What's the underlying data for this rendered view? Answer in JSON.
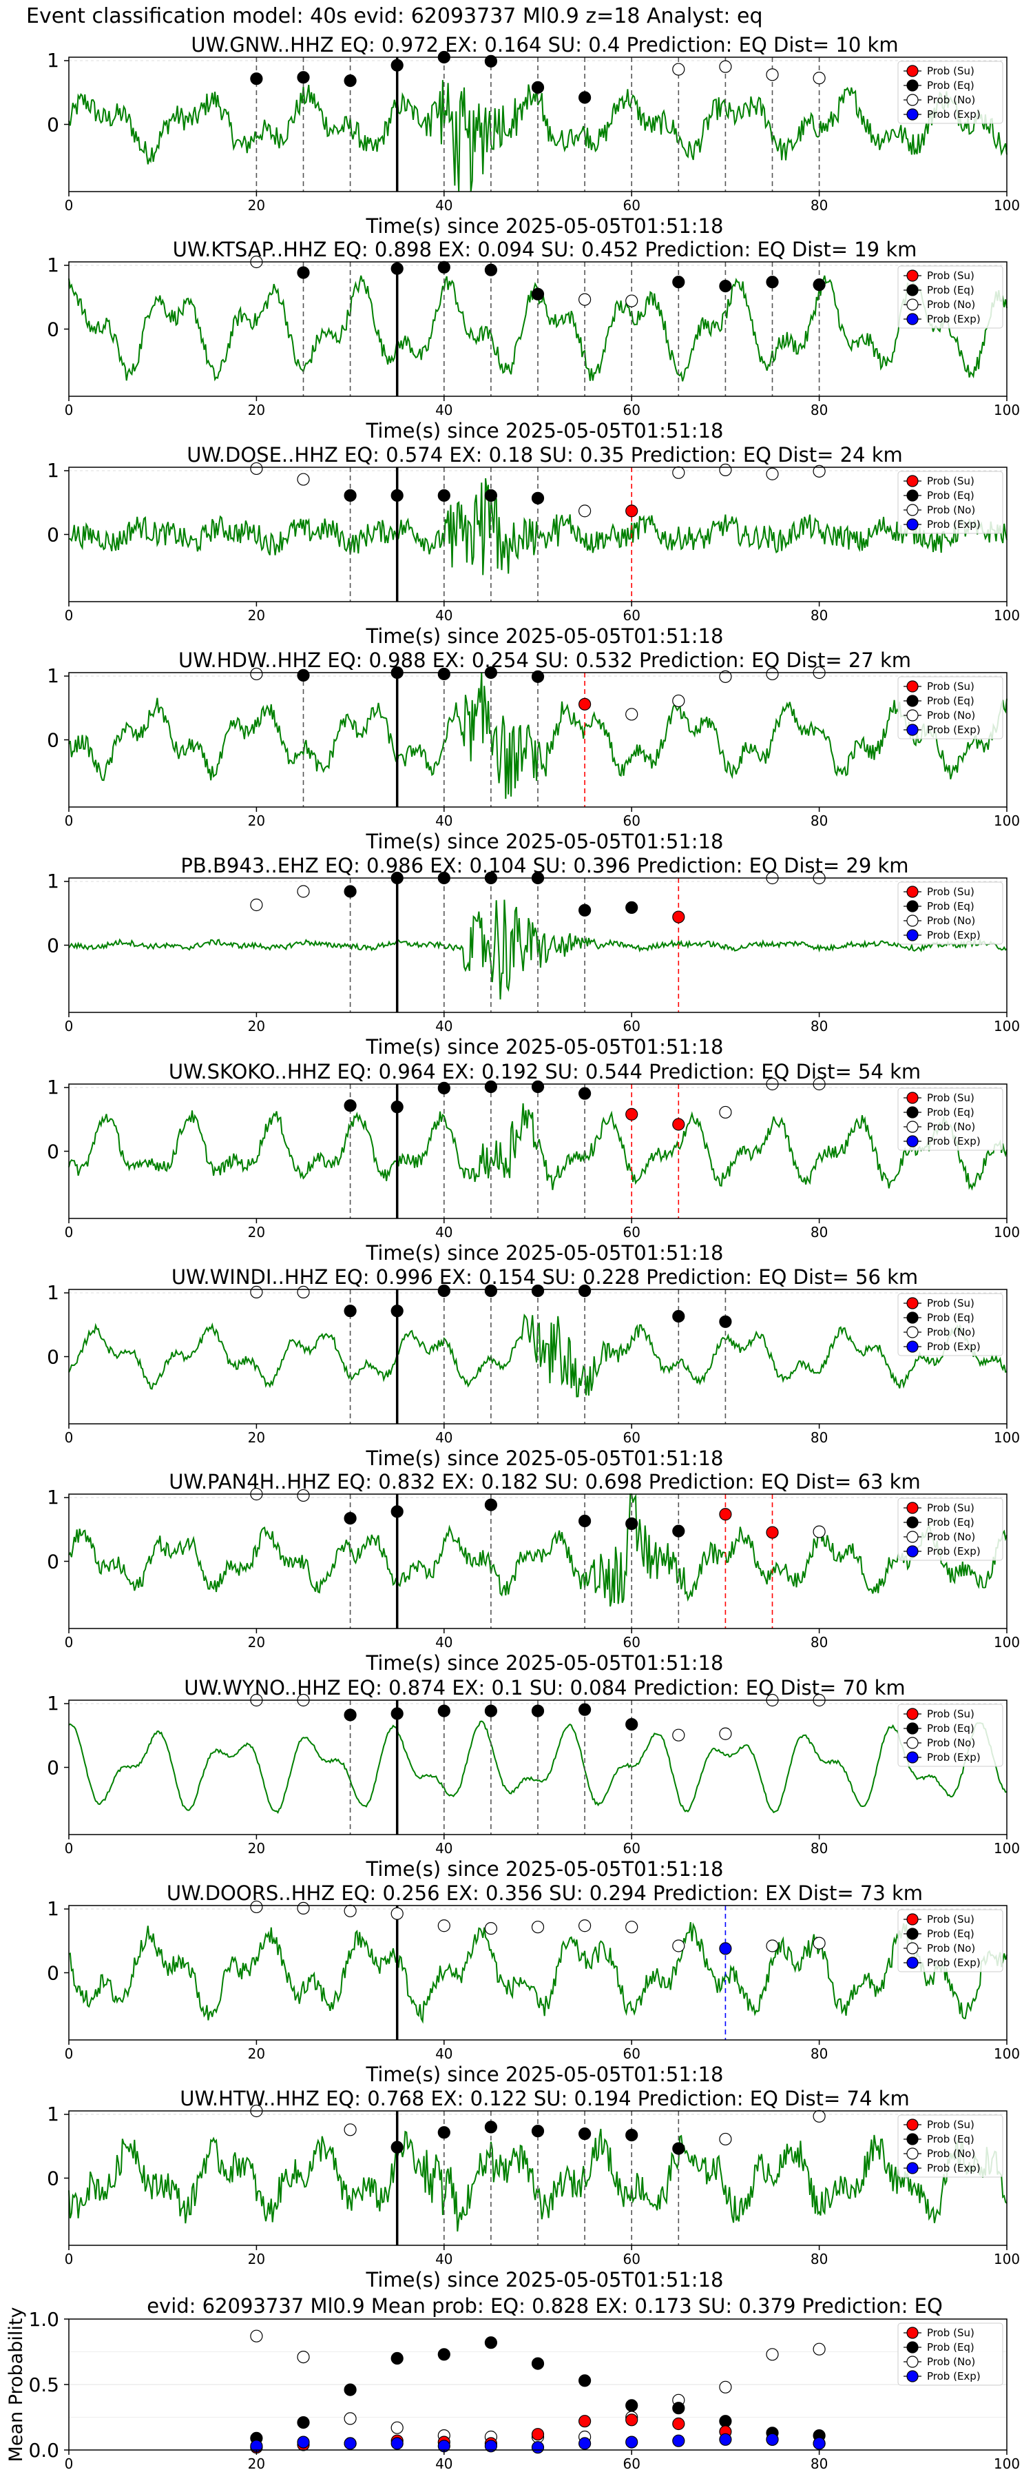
{
  "page_title": "Event classification model: 40s evid: 62093737 Ml0.9 z=18 Analyst: eq",
  "colors": {
    "waveform": "#008000",
    "su": "#ff0000",
    "eq": "#000000",
    "no": "#ffffff",
    "exp": "#0000ff",
    "pick_solid": "#000000",
    "pick_dashed": "#555555"
  },
  "legend_labels": [
    "Prob (Su)",
    "Prob (Eq)",
    "Prob (No)",
    "Prob (Exp)"
  ],
  "chart_data": [
    {
      "type": "line",
      "title": "UW.GNW..HHZ   EQ: 0.972  EX: 0.164  SU: 0.4   Prediction: EQ    Dist= 10 km",
      "xlabel": "Time(s) since 2025-05-05T01:51:18",
      "xlim": [
        0,
        100
      ],
      "ylim": [
        -1,
        1
      ],
      "xticks": [
        0,
        20,
        40,
        60,
        80,
        100
      ],
      "yticks": [
        1,
        0
      ],
      "legend_position": "top-right",
      "arrival_time": 35,
      "window_starts": [
        20,
        25,
        30,
        35,
        40,
        45,
        50,
        55,
        60,
        65,
        70,
        75,
        80
      ],
      "series": [
        {
          "name": "Prob (No)",
          "x": [
            65,
            70,
            75,
            80
          ],
          "y": [
            0.82,
            0.86,
            0.74,
            0.69
          ]
        },
        {
          "name": "Prob (Eq)",
          "x": [
            20,
            25,
            30,
            35,
            40,
            45,
            50,
            55
          ],
          "y": [
            0.68,
            0.7,
            0.65,
            0.88,
            1.0,
            0.94,
            0.55,
            0.4
          ]
        }
      ]
    },
    {
      "type": "line",
      "title": "UW.KTSAP..HHZ   EQ: 0.898  EX: 0.094  SU: 0.452   Prediction: EQ    Dist= 19 km",
      "xlabel": "Time(s) since 2025-05-05T01:51:18",
      "xlim": [
        0,
        100
      ],
      "ylim": [
        -1,
        1
      ],
      "xticks": [
        0,
        20,
        40,
        60,
        80,
        100
      ],
      "yticks": [
        1,
        0
      ],
      "legend_position": "top-right",
      "arrival_time": 35,
      "window_starts": [
        25,
        30,
        35,
        40,
        45,
        50,
        55,
        60,
        65,
        70,
        75,
        80
      ],
      "series": [
        {
          "name": "Prob (No)",
          "x": [
            20,
            55,
            60
          ],
          "y": [
            1.0,
            0.44,
            0.42
          ]
        },
        {
          "name": "Prob (Eq)",
          "x": [
            25,
            35,
            40,
            45,
            50,
            65,
            70,
            75,
            80
          ],
          "y": [
            0.84,
            0.9,
            0.92,
            0.88,
            0.52,
            0.7,
            0.64,
            0.7,
            0.66
          ]
        }
      ]
    },
    {
      "type": "line",
      "title": "UW.DOSE..HHZ   EQ: 0.574  EX: 0.18  SU: 0.35   Prediction: EQ    Dist= 24 km",
      "xlabel": "Time(s) since 2025-05-05T01:51:18",
      "xlim": [
        0,
        100
      ],
      "ylim": [
        -1,
        1
      ],
      "xticks": [
        0,
        20,
        40,
        60,
        80,
        100
      ],
      "yticks": [
        1,
        0
      ],
      "legend_position": "top-right",
      "arrival_time": 35,
      "window_starts": [
        30,
        40,
        45,
        50
      ],
      "su_lines": [
        60
      ],
      "series": [
        {
          "name": "Prob (No)",
          "x": [
            20,
            25,
            55,
            65,
            70,
            75,
            80
          ],
          "y": [
            0.98,
            0.82,
            0.35,
            0.92,
            0.96,
            0.9,
            0.94
          ]
        },
        {
          "name": "Prob (Eq)",
          "x": [
            30,
            35,
            40,
            45,
            50
          ],
          "y": [
            0.58,
            0.58,
            0.58,
            0.58,
            0.54
          ]
        },
        {
          "name": "Prob (Su)",
          "x": [
            60
          ],
          "y": [
            0.35
          ]
        }
      ]
    },
    {
      "type": "line",
      "title": "UW.HDW..HHZ   EQ: 0.988  EX: 0.254  SU: 0.532   Prediction: EQ    Dist= 27 km",
      "xlabel": "Time(s) since 2025-05-05T01:51:18",
      "xlim": [
        0,
        100
      ],
      "ylim": [
        -1,
        1
      ],
      "xticks": [
        0,
        20,
        40,
        60,
        80,
        100
      ],
      "yticks": [
        1,
        0
      ],
      "legend_position": "top-right",
      "arrival_time": 35,
      "window_starts": [
        25,
        40,
        45,
        50
      ],
      "su_lines": [
        55
      ],
      "series": [
        {
          "name": "Prob (No)",
          "x": [
            20,
            60,
            65,
            70,
            75,
            80
          ],
          "y": [
            0.98,
            0.38,
            0.58,
            0.94,
            0.98,
            1.0
          ]
        },
        {
          "name": "Prob (Eq)",
          "x": [
            25,
            35,
            40,
            45,
            50
          ],
          "y": [
            0.96,
            1.0,
            0.98,
            1.0,
            0.94
          ]
        },
        {
          "name": "Prob (Su)",
          "x": [
            55
          ],
          "y": [
            0.53
          ]
        }
      ]
    },
    {
      "type": "line",
      "title": "PB.B943..EHZ   EQ: 0.986  EX: 0.104  SU: 0.396   Prediction: EQ    Dist= 29 km",
      "xlabel": "Time(s) since 2025-05-05T01:51:18",
      "xlim": [
        0,
        100
      ],
      "ylim": [
        -1,
        1
      ],
      "xticks": [
        0,
        20,
        40,
        60,
        80,
        100
      ],
      "yticks": [
        1,
        0
      ],
      "legend_position": "top-right",
      "arrival_time": 35,
      "window_starts": [
        30,
        40,
        45,
        50,
        55
      ],
      "su_lines": [
        65
      ],
      "series": [
        {
          "name": "Prob (No)",
          "x": [
            20,
            25,
            75,
            80
          ],
          "y": [
            0.6,
            0.8,
            1.0,
            1.0
          ]
        },
        {
          "name": "Prob (Eq)",
          "x": [
            30,
            35,
            40,
            45,
            50,
            55,
            60
          ],
          "y": [
            0.8,
            1.0,
            1.0,
            1.0,
            1.0,
            0.52,
            0.56
          ]
        },
        {
          "name": "Prob (Su)",
          "x": [
            65
          ],
          "y": [
            0.42
          ]
        }
      ]
    },
    {
      "type": "line",
      "title": "UW.SKOKO..HHZ   EQ: 0.964  EX: 0.192  SU: 0.544   Prediction: EQ    Dist= 54 km",
      "xlabel": "Time(s) since 2025-05-05T01:51:18",
      "xlim": [
        0,
        100
      ],
      "ylim": [
        -1,
        1
      ],
      "xticks": [
        0,
        20,
        40,
        60,
        80,
        100
      ],
      "yticks": [
        1,
        0
      ],
      "legend_position": "top-right",
      "arrival_time": 35,
      "window_starts": [
        30,
        40,
        45,
        50,
        55
      ],
      "su_lines": [
        60,
        65
      ],
      "series": [
        {
          "name": "Prob (No)",
          "x": [
            70,
            75,
            80
          ],
          "y": [
            0.58,
            1.0,
            1.0
          ]
        },
        {
          "name": "Prob (Eq)",
          "x": [
            30,
            35,
            40,
            45,
            50,
            55
          ],
          "y": [
            0.68,
            0.66,
            0.94,
            0.96,
            0.96,
            0.86
          ]
        },
        {
          "name": "Prob (Su)",
          "x": [
            60,
            65
          ],
          "y": [
            0.55,
            0.4
          ]
        }
      ]
    },
    {
      "type": "line",
      "title": "UW.WINDI..HHZ   EQ: 0.996  EX: 0.154  SU: 0.228   Prediction: EQ    Dist= 56 km",
      "xlabel": "Time(s) since 2025-05-05T01:51:18",
      "xlim": [
        0,
        100
      ],
      "ylim": [
        -1,
        1
      ],
      "xticks": [
        0,
        20,
        40,
        60,
        80,
        100
      ],
      "yticks": [
        1,
        0
      ],
      "legend_position": "top-right",
      "arrival_time": 35,
      "window_starts": [
        30,
        40,
        45,
        50,
        55,
        65,
        70
      ],
      "series": [
        {
          "name": "Prob (No)",
          "x": [
            20,
            25
          ],
          "y": [
            0.96,
            0.96
          ]
        },
        {
          "name": "Prob (Eq)",
          "x": [
            30,
            35,
            40,
            45,
            50,
            55,
            65,
            70
          ],
          "y": [
            0.68,
            0.68,
            0.98,
            0.98,
            0.98,
            0.98,
            0.6,
            0.52
          ]
        }
      ]
    },
    {
      "type": "line",
      "title": "UW.PAN4H..HHZ   EQ: 0.832  EX: 0.182  SU: 0.698   Prediction: EQ    Dist= 63 km",
      "xlabel": "Time(s) since 2025-05-05T01:51:18",
      "xlim": [
        0,
        100
      ],
      "ylim": [
        -1,
        1
      ],
      "xticks": [
        0,
        20,
        40,
        60,
        80,
        100
      ],
      "yticks": [
        1,
        0
      ],
      "legend_position": "top-right",
      "arrival_time": 35,
      "window_starts": [
        30,
        45,
        55,
        60,
        65
      ],
      "su_lines": [
        70,
        75
      ],
      "series": [
        {
          "name": "Prob (No)",
          "x": [
            20,
            25,
            80
          ],
          "y": [
            1.0,
            0.98,
            0.44
          ]
        },
        {
          "name": "Prob (Eq)",
          "x": [
            30,
            35,
            45,
            55,
            60,
            65
          ],
          "y": [
            0.64,
            0.74,
            0.84,
            0.6,
            0.56,
            0.45
          ]
        },
        {
          "name": "Prob (Su)",
          "x": [
            70,
            75
          ],
          "y": [
            0.7,
            0.43
          ]
        }
      ]
    },
    {
      "type": "line",
      "title": "UW.WYNO..HHZ   EQ: 0.874  EX: 0.1  SU: 0.084   Prediction: EQ    Dist= 70 km",
      "xlabel": "Time(s) since 2025-05-05T01:51:18",
      "xlim": [
        0,
        100
      ],
      "ylim": [
        -1,
        1
      ],
      "xticks": [
        0,
        20,
        40,
        60,
        80,
        100
      ],
      "yticks": [
        1,
        0
      ],
      "legend_position": "top-right",
      "arrival_time": 35,
      "window_starts": [
        30,
        40,
        45,
        50,
        55,
        60
      ],
      "series": [
        {
          "name": "Prob (No)",
          "x": [
            20,
            25,
            65,
            70,
            75,
            80
          ],
          "y": [
            1.0,
            1.0,
            0.48,
            0.5,
            1.0,
            1.0
          ]
        },
        {
          "name": "Prob (Eq)",
          "x": [
            30,
            35,
            40,
            45,
            50,
            55,
            60
          ],
          "y": [
            0.78,
            0.8,
            0.84,
            0.84,
            0.84,
            0.86,
            0.64
          ]
        }
      ]
    },
    {
      "type": "line",
      "title": "UW.DOORS..HHZ   EQ: 0.256  EX: 0.356  SU: 0.294   Prediction: EX    Dist= 73 km",
      "xlabel": "Time(s) since 2025-05-05T01:51:18",
      "xlim": [
        0,
        100
      ],
      "ylim": [
        -1,
        1
      ],
      "xticks": [
        0,
        20,
        40,
        60,
        80,
        100
      ],
      "yticks": [
        1,
        0
      ],
      "legend_position": "top-right",
      "arrival_time": 35,
      "window_starts": [],
      "ex_lines": [
        70
      ],
      "series": [
        {
          "name": "Prob (No)",
          "x": [
            20,
            25,
            30,
            35,
            40,
            45,
            50,
            55,
            60,
            65,
            75,
            80
          ],
          "y": [
            0.98,
            0.96,
            0.92,
            0.88,
            0.7,
            0.66,
            0.68,
            0.7,
            0.68,
            0.4,
            0.4,
            0.44
          ]
        },
        {
          "name": "Prob (Exp)",
          "x": [
            70
          ],
          "y": [
            0.36
          ]
        }
      ]
    },
    {
      "type": "line",
      "title": "UW.HTW..HHZ   EQ: 0.768  EX: 0.122  SU: 0.194   Prediction: EQ    Dist= 74 km",
      "xlabel": "Time(s) since 2025-05-05T01:51:18",
      "xlim": [
        0,
        100
      ],
      "ylim": [
        -1,
        1
      ],
      "xticks": [
        0,
        20,
        40,
        60,
        80,
        100
      ],
      "yticks": [
        1,
        0
      ],
      "legend_position": "top-right",
      "arrival_time": 35,
      "window_starts": [
        40,
        45,
        50,
        55,
        60,
        65
      ],
      "series": [
        {
          "name": "Prob (No)",
          "x": [
            20,
            30,
            70,
            80
          ],
          "y": [
            1.0,
            0.72,
            0.58,
            0.92
          ]
        },
        {
          "name": "Prob (Eq)",
          "x": [
            35,
            40,
            45,
            50,
            55,
            60,
            65
          ],
          "y": [
            0.46,
            0.68,
            0.76,
            0.7,
            0.66,
            0.64,
            0.44
          ]
        }
      ]
    },
    {
      "type": "scatter",
      "title": "evid: 62093737  Ml0.9   Mean prob:   EQ: 0.828  EX: 0.173  SU: 0.379   Prediction: EQ",
      "ylabel": "Mean Probability",
      "xlim": [
        0,
        100
      ],
      "ylim": [
        0,
        1
      ],
      "xticks": [
        0,
        20,
        40,
        60,
        80,
        100
      ],
      "yticks": [
        1.0,
        0.5,
        0.0
      ],
      "legend_position": "top-right",
      "x": [
        20,
        25,
        30,
        35,
        40,
        45,
        50,
        55,
        60,
        65,
        70,
        75,
        80
      ],
      "series": [
        {
          "name": "Prob (No)",
          "values": [
            0.87,
            0.71,
            0.24,
            0.17,
            0.11,
            0.1,
            0.1,
            0.1,
            0.25,
            0.38,
            0.48,
            0.73,
            0.77
          ]
        },
        {
          "name": "Prob (Eq)",
          "values": [
            0.09,
            0.21,
            0.46,
            0.7,
            0.73,
            0.82,
            0.66,
            0.53,
            0.34,
            0.32,
            0.22,
            0.13,
            0.11
          ]
        },
        {
          "name": "Prob (Su)",
          "values": [
            0.02,
            0.04,
            0.05,
            0.07,
            0.06,
            0.05,
            0.12,
            0.22,
            0.23,
            0.2,
            0.14,
            0.08,
            0.05
          ]
        },
        {
          "name": "Prob (Exp)",
          "values": [
            0.03,
            0.06,
            0.05,
            0.05,
            0.03,
            0.03,
            0.02,
            0.05,
            0.06,
            0.07,
            0.08,
            0.08,
            0.05
          ]
        }
      ]
    }
  ]
}
